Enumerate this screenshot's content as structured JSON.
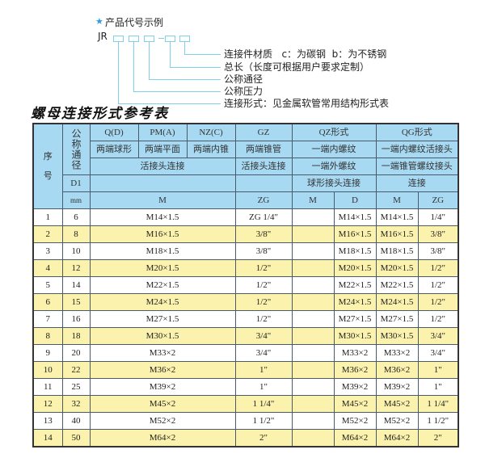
{
  "example": {
    "title": "产品代号示例",
    "code_prefix": "JR",
    "labels": [
      "连接件材质   c：为碳钢  b：为不锈钢",
      "总长（长度可根据用户要求定制）",
      "公称通径",
      "公称压力",
      "连接形式：见金属软管常用结构形式表"
    ]
  },
  "sheet_title": "螺母连接形式参考表",
  "colors": {
    "header_bg": "#a7d9f2",
    "row_alt": "#fbf2ad",
    "accent": "#2aa0d8"
  },
  "table": {
    "header": {
      "seq": "序\n\n号",
      "nominal": "公称通径",
      "d1": "D1",
      "mm": "mm",
      "qd": "Q(D)",
      "pm": "PM(A)",
      "nz": "NZ(C)",
      "gz": "GZ",
      "qz": "QZ形式",
      "qg": "QG形式",
      "qd_desc": "两端球形",
      "pm_desc": "两端平面",
      "nz_desc": "两端内锥",
      "gz_desc": "两端锥管",
      "qz_desc1": "一端内螺纹",
      "qg_desc1": "一端内螺纹活接头",
      "union_conn": "活接头连接",
      "gz_conn": "活接头连接",
      "qz_desc2": "一端外螺纹",
      "qg_desc2": "一端锥管螺纹接头",
      "qz_desc3": "球形接头连接",
      "qg_desc3": "连接",
      "m": "M",
      "zg": "ZG",
      "qz_m": "M",
      "qz_d": "D",
      "qg_m": "M",
      "qg_zg": "ZG"
    },
    "rows": [
      [
        "1",
        "6",
        "M14×1.5",
        "ZG 1/4\"",
        "",
        "M14×1.5",
        "M14×1.5",
        "1/4\""
      ],
      [
        "2",
        "8",
        "M16×1.5",
        "3/8\"",
        "",
        "M16×1.5",
        "M16×1.5",
        "3/8\""
      ],
      [
        "3",
        "10",
        "M18×1.5",
        "3/8\"",
        "",
        "M18×1.5",
        "M18×1.5",
        "3/8\""
      ],
      [
        "4",
        "12",
        "M20×1.5",
        "1/2\"",
        "",
        "M20×1.5",
        "M20×1.5",
        "1/2\""
      ],
      [
        "5",
        "14",
        "M22×1.5",
        "1/2\"",
        "",
        "M22×1.5",
        "M22×1.5",
        "1/2\""
      ],
      [
        "6",
        "15",
        "M24×1.5",
        "1/2\"",
        "",
        "M24×1.5",
        "M24×1.5",
        "1/2\""
      ],
      [
        "7",
        "16",
        "M27×1.5",
        "1/2\"",
        "",
        "M27×1.5",
        "M27×1.5",
        "1/2\""
      ],
      [
        "8",
        "18",
        "M30×1.5",
        "3/4\"",
        "",
        "M30×1.5",
        "M30×1.5",
        "3/4\""
      ],
      [
        "9",
        "20",
        "M33×2",
        "3/4\"",
        "",
        "M33×2",
        "M33×2",
        "3/4\""
      ],
      [
        "10",
        "22",
        "M36×2",
        "1\"",
        "",
        "M36×2",
        "M36×2",
        "1\""
      ],
      [
        "11",
        "25",
        "M39×2",
        "1\"",
        "",
        "M39×2",
        "M39×2",
        "1\""
      ],
      [
        "12",
        "32",
        "M45×2",
        "1 1/4\"",
        "",
        "M45×2",
        "M45×2",
        "1 1/4\""
      ],
      [
        "13",
        "40",
        "M52×2",
        "1 1/2\"",
        "",
        "M52×2",
        "M52×2",
        "1 1/2\""
      ],
      [
        "14",
        "50",
        "M64×2",
        "2\"",
        "",
        "M64×2",
        "M64×2",
        "2\""
      ]
    ]
  }
}
